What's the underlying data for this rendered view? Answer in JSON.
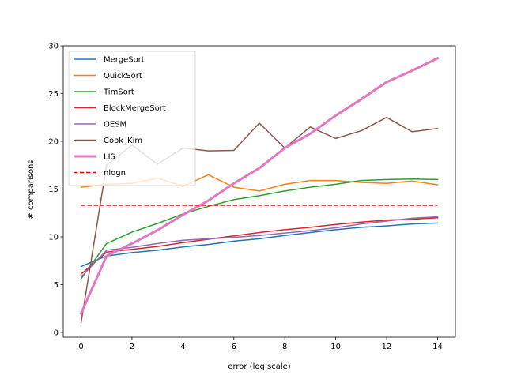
{
  "chart_data": {
    "type": "line",
    "xlabel": "error (log scale)",
    "ylabel": "# comparisons",
    "xlim": [
      -0.7,
      14.7
    ],
    "ylim": [
      -0.5,
      30
    ],
    "xticks": [
      0,
      2,
      4,
      6,
      8,
      10,
      12,
      14
    ],
    "yticks": [
      0,
      5,
      10,
      15,
      20,
      25,
      30
    ],
    "grid": false,
    "legend_position": "top-left",
    "x": [
      0,
      1,
      2,
      3,
      4,
      5,
      6,
      7,
      8,
      9,
      10,
      11,
      12,
      13,
      14
    ],
    "series": [
      {
        "name": "MergeSort",
        "color": "#1f77b4",
        "style": "solid",
        "width": 1.5,
        "values": [
          6.9,
          8.0,
          8.35,
          8.6,
          8.95,
          9.2,
          9.55,
          9.8,
          10.15,
          10.45,
          10.75,
          11.0,
          11.15,
          11.35,
          11.45
        ]
      },
      {
        "name": "QuickSort",
        "color": "#ff7f0e",
        "style": "solid",
        "width": 1.5,
        "values": [
          15.2,
          15.5,
          15.6,
          16.15,
          15.3,
          16.5,
          15.2,
          14.8,
          15.5,
          15.9,
          15.9,
          15.7,
          15.6,
          15.85,
          15.45
        ]
      },
      {
        "name": "TimSort",
        "color": "#2ca02c",
        "style": "solid",
        "width": 1.5,
        "values": [
          5.6,
          9.3,
          10.5,
          11.4,
          12.4,
          13.2,
          13.9,
          14.3,
          14.8,
          15.2,
          15.5,
          15.9,
          16.0,
          16.05,
          16.0
        ]
      },
      {
        "name": "BlockMergeSort",
        "color": "#d62728",
        "style": "solid",
        "width": 1.5,
        "values": [
          6.1,
          8.4,
          8.7,
          9.0,
          9.4,
          9.75,
          10.1,
          10.45,
          10.75,
          11.0,
          11.3,
          11.55,
          11.75,
          11.85,
          12.0
        ]
      },
      {
        "name": "OESM",
        "color": "#9467bd",
        "style": "solid",
        "width": 1.5,
        "values": [
          5.8,
          8.6,
          8.9,
          9.3,
          9.65,
          9.8,
          9.95,
          10.15,
          10.4,
          10.65,
          10.95,
          11.35,
          11.65,
          11.95,
          12.1
        ]
      },
      {
        "name": "Cook_Kim",
        "color": "#8c564b",
        "style": "solid",
        "width": 1.5,
        "values": [
          1.0,
          17.5,
          19.6,
          17.6,
          19.3,
          19.0,
          19.05,
          21.9,
          19.3,
          21.5,
          20.3,
          21.1,
          22.5,
          21.0,
          21.35
        ]
      },
      {
        "name": "LIS",
        "color": "#e377c2",
        "style": "solid",
        "width": 3,
        "values": [
          2.0,
          8.0,
          9.3,
          10.7,
          12.3,
          13.8,
          15.6,
          17.2,
          19.3,
          20.8,
          22.7,
          24.4,
          26.2,
          27.4,
          28.7
        ]
      },
      {
        "name": "nlogn",
        "color": "#ff0000",
        "style": "dashed",
        "width": 1.5,
        "values": [
          13.3,
          13.3,
          13.3,
          13.3,
          13.3,
          13.3,
          13.3,
          13.3,
          13.3,
          13.3,
          13.3,
          13.3,
          13.3,
          13.3,
          13.3
        ]
      }
    ]
  }
}
